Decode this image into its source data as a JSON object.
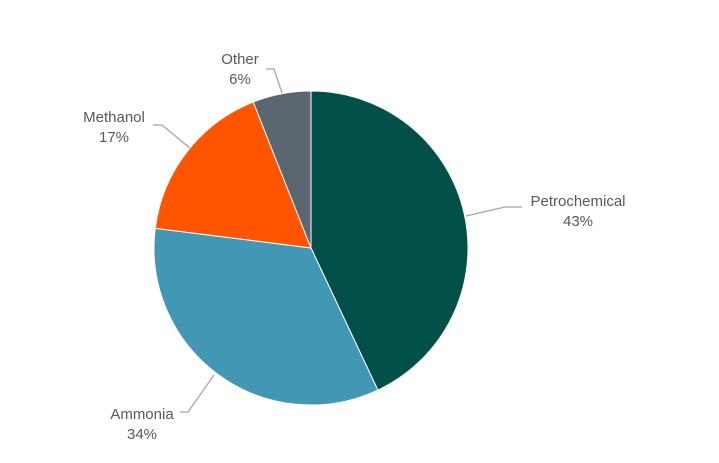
{
  "chart_data": {
    "type": "pie",
    "title": "",
    "start_angle": "12 o'clock",
    "direction": "clockwise",
    "legend": "none",
    "slices": [
      {
        "label": "Petrochemical",
        "value": 43,
        "value_label": "43%",
        "color": "#005049"
      },
      {
        "label": "Ammonia",
        "value": 34,
        "value_label": "34%",
        "color": "#4297B4"
      },
      {
        "label": "Methanol",
        "value": 17,
        "value_label": "17%",
        "color": "#FF5500"
      },
      {
        "label": "Other",
        "value": 6,
        "value_label": "6%",
        "color": "#5B6670"
      }
    ]
  }
}
